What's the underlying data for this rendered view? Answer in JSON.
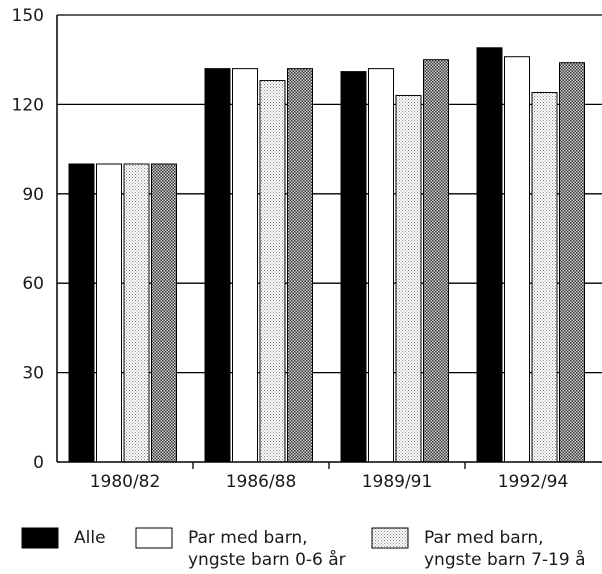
{
  "chart_data": {
    "type": "bar",
    "categories": [
      "1980/82",
      "1986/88",
      "1989/91",
      "1992/94"
    ],
    "series": [
      {
        "name": "Alle",
        "values": [
          100,
          132,
          131,
          139
        ],
        "fill": "solid-black"
      },
      {
        "name": "Par med barn, yngste barn 0-6 år",
        "values": [
          100,
          132,
          132,
          136
        ],
        "fill": "white"
      },
      {
        "name": "Par med barn, yngste barn 7-19 å",
        "values": [
          100,
          128,
          123,
          124
        ],
        "fill": "light-dotted"
      },
      {
        "name": "",
        "values": [
          100,
          132,
          135,
          134
        ],
        "fill": "dark-dotted"
      }
    ],
    "legend": [
      {
        "lines": [
          "Alle"
        ],
        "fill": "solid-black"
      },
      {
        "lines": [
          "Par med barn,",
          "yngste barn 0-6 år"
        ],
        "fill": "white"
      },
      {
        "lines": [
          "Par med barn,",
          "yngste barn 7-19 å"
        ],
        "fill": "light-dotted"
      }
    ],
    "y_ticks": [
      "0",
      "30",
      "60",
      "90",
      "120",
      "150"
    ],
    "ylim": [
      0,
      150
    ],
    "grid": "horizontal",
    "legend_placement": "bottom",
    "title": "",
    "xlabel": "",
    "ylabel": ""
  },
  "colors": {
    "black": "#000000",
    "light_dot": "#8a8a8a",
    "dark_dot": "#3a3a3a",
    "text": "#1a1a1a"
  }
}
